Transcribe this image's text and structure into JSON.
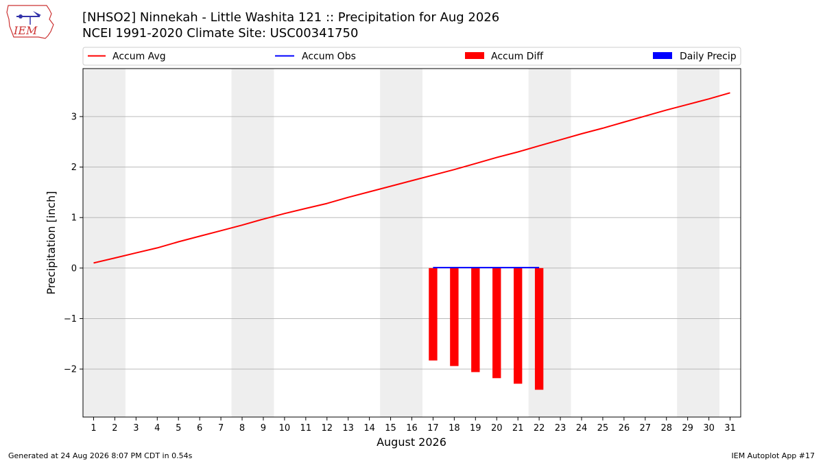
{
  "title": "[NHSO2] Ninnekah - Little Washita 121 :: Precipitation for Aug 2026",
  "subtitle": "NCEI 1991-2020 Climate Site: USC00341750",
  "logo_text": "IEM",
  "footer_left": "Generated at 24 Aug 2026 8:07 PM CDT in 0.54s",
  "footer_right": "IEM Autoplot App #17",
  "colors": {
    "accum_avg": "#ff0000",
    "accum_obs": "#0000ff",
    "accum_diff": "#ff0000",
    "daily_precip": "#0000ff",
    "weekend_shade": "#eeeeee",
    "grid": "#b0b0b0"
  },
  "chart_data": {
    "type": "line",
    "xlabel": "August 2026",
    "ylabel": "Precipitation [inch]",
    "xlim": [
      0.5,
      31.5
    ],
    "ylim": [
      -2.95,
      3.95
    ],
    "x_ticks": [
      1,
      2,
      3,
      4,
      5,
      6,
      7,
      8,
      9,
      10,
      11,
      12,
      13,
      14,
      15,
      16,
      17,
      18,
      19,
      20,
      21,
      22,
      23,
      24,
      25,
      26,
      27,
      28,
      29,
      30,
      31
    ],
    "y_ticks": [
      -2,
      -1,
      0,
      1,
      2,
      3
    ],
    "y_tick_labels": [
      "−2",
      "−1",
      "0",
      "1",
      "2",
      "3"
    ],
    "grid": "horizontal",
    "legend_position": "top",
    "legend": [
      "Accum Avg",
      "Accum Obs",
      "Accum Diff",
      "Daily Precip"
    ],
    "weekend_spans": [
      [
        0.5,
        2.5
      ],
      [
        7.5,
        9.5
      ],
      [
        14.5,
        16.5
      ],
      [
        21.5,
        23.5
      ],
      [
        28.5,
        30.5
      ]
    ],
    "series": [
      {
        "name": "Accum Avg",
        "kind": "line",
        "x": [
          1,
          2,
          3,
          4,
          5,
          6,
          7,
          8,
          9,
          10,
          11,
          12,
          13,
          14,
          15,
          16,
          17,
          18,
          19,
          20,
          21,
          22,
          23,
          24,
          25,
          26,
          27,
          28,
          29,
          30,
          31
        ],
        "values": [
          0.1,
          0.2,
          0.3,
          0.4,
          0.52,
          0.63,
          0.74,
          0.85,
          0.97,
          1.08,
          1.18,
          1.28,
          1.4,
          1.51,
          1.62,
          1.73,
          1.84,
          1.95,
          2.07,
          2.19,
          2.3,
          2.42,
          2.54,
          2.66,
          2.77,
          2.89,
          3.01,
          3.13,
          3.24,
          3.35,
          3.47
        ]
      },
      {
        "name": "Accum Obs",
        "kind": "line",
        "x": [
          17,
          18,
          19,
          20,
          21,
          22
        ],
        "values": [
          0.01,
          0.01,
          0.01,
          0.01,
          0.01,
          0.01
        ]
      },
      {
        "name": "Accum Diff",
        "kind": "bar",
        "x": [
          17,
          18,
          19,
          20,
          21,
          22
        ],
        "values": [
          -1.83,
          -1.94,
          -2.06,
          -2.18,
          -2.29,
          -2.41
        ]
      },
      {
        "name": "Daily Precip",
        "kind": "bar",
        "x": [
          17,
          18,
          19,
          20,
          21,
          22
        ],
        "values": [
          0,
          0,
          0,
          0,
          0,
          0
        ]
      }
    ]
  }
}
